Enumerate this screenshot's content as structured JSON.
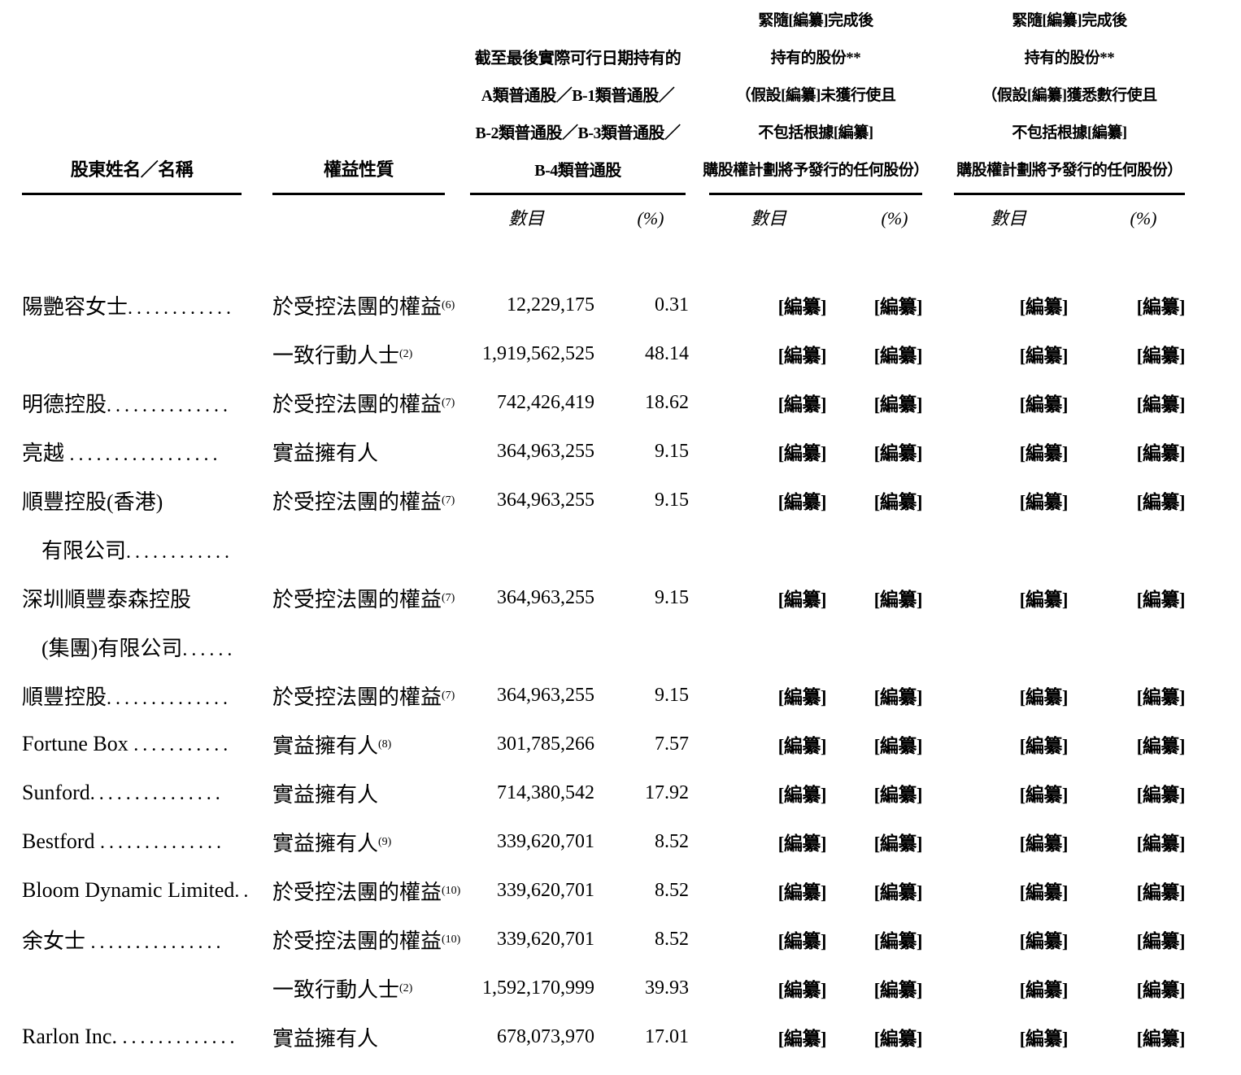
{
  "table": {
    "placeholder": "[編纂]",
    "headers": {
      "name": "股東姓名／名稱",
      "nature": "權益性質",
      "group1_lines": [
        "截至最後實際可行日期持有的",
        "A類普通股／B-1類普通股／",
        "B-2類普通股／B-3類普通股／",
        "B-4類普通股"
      ],
      "group2_lines": [
        "緊隨[編纂]完成後",
        "持有的股份**",
        "（假設[編纂]未獲行使且",
        "不包括根據[編纂]",
        "購股權計劃將予發行的任何股份）"
      ],
      "group3_lines": [
        "緊隨[編纂]完成後",
        "持有的股份**",
        "（假設[編纂]獲悉數行使且",
        "不包括根據[編纂]",
        "購股權計劃將予發行的任何股份）"
      ],
      "sub_number": "數目",
      "sub_pct": "(%)"
    },
    "rows": [
      {
        "name": "陽艷容女士",
        "dots": "............",
        "nature": "於受控法團的權益",
        "note": "(6)",
        "num": "12,229,175",
        "pct": "0.31"
      },
      {
        "name": "",
        "dots": "",
        "nature": "一致行動人士",
        "note": "(2)",
        "num": "1,919,562,525",
        "pct": "48.14"
      },
      {
        "name": "明德控股",
        "dots": "..............",
        "nature": "於受控法團的權益",
        "note": "(7)",
        "num": "742,426,419",
        "pct": "18.62"
      },
      {
        "name": "亮越 ",
        "dots": ".................",
        "nature": "實益擁有人",
        "note": "",
        "num": "364,963,255",
        "pct": "9.15"
      },
      {
        "name": "順豐控股(香港)",
        "dots": "",
        "nature": "於受控法團的權益",
        "note": "(7)",
        "num": "364,963,255",
        "pct": "9.15"
      },
      {
        "name": "有限公司",
        "dots": "............",
        "nature": "",
        "note": "",
        "num": "",
        "pct": ""
      },
      {
        "name": "深圳順豐泰森控股",
        "dots": "",
        "nature": "於受控法團的權益",
        "note": "(7)",
        "num": "364,963,255",
        "pct": "9.15"
      },
      {
        "name": "(集團)有限公司",
        "dots": "......",
        "nature": "",
        "note": "",
        "num": "",
        "pct": ""
      },
      {
        "name": "順豐控股",
        "dots": "..............",
        "nature": "於受控法團的權益",
        "note": "(7)",
        "num": "364,963,255",
        "pct": "9.15"
      },
      {
        "name": "Fortune Box ",
        "dots": "...........",
        "nature": "實益擁有人",
        "note": "(8)",
        "num": "301,785,266",
        "pct": "7.57"
      },
      {
        "name": "Sunford",
        "dots": "...............",
        "nature": "實益擁有人",
        "note": "",
        "num": "714,380,542",
        "pct": "17.92"
      },
      {
        "name": "Bestford ",
        "dots": "..............",
        "nature": "實益擁有人",
        "note": "(9)",
        "num": "339,620,701",
        "pct": "8.52"
      },
      {
        "name": "Bloom Dynamic Limited",
        "dots": "..",
        "nature": "於受控法團的權益",
        "note": "(10)",
        "num": "339,620,701",
        "pct": "8.52"
      },
      {
        "name": "余女士 ",
        "dots": "...............",
        "nature": "於受控法團的權益",
        "note": "(10)",
        "num": "339,620,701",
        "pct": "8.52"
      },
      {
        "name": "",
        "dots": "",
        "nature": "一致行動人士",
        "note": "(2)",
        "num": "1,592,170,999",
        "pct": "39.93"
      },
      {
        "name": "Rarlon Inc. ",
        "dots": ".............",
        "nature": "實益擁有人",
        "note": "",
        "num": "678,073,970",
        "pct": "17.01"
      }
    ]
  }
}
